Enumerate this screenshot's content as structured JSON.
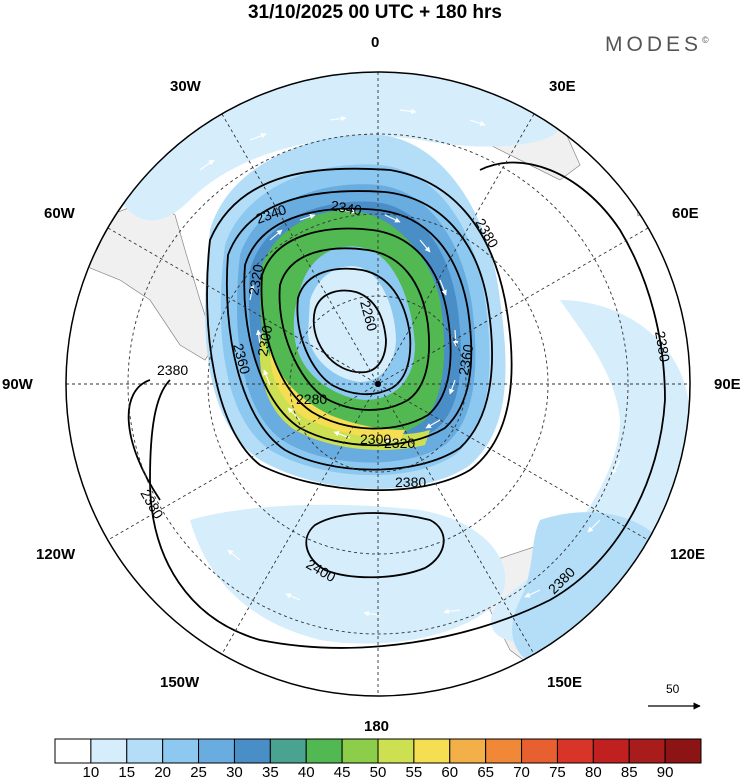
{
  "title": "31/10/2025  00 UTC  + 180 hrs",
  "brand": {
    "name": "MODES",
    "mark": "©"
  },
  "longitude_labels": {
    "lon_0": "0",
    "lon_30e": "30E",
    "lon_60e": "60E",
    "lon_90e": "90E",
    "lon_120e": "120E",
    "lon_150e": "150E",
    "lon_180": "180",
    "lon_150w": "150W",
    "lon_120w": "120W",
    "lon_90w": "90W",
    "lon_60w": "60W",
    "lon_30w": "30W"
  },
  "contour_labels": [
    "2380",
    "2380",
    "2380",
    "2380",
    "2380",
    "2380",
    "2360",
    "2360",
    "2340",
    "2340",
    "2320",
    "2320",
    "2300",
    "2300",
    "2280",
    "2260",
    "2400"
  ],
  "reference_vector": {
    "value": "50"
  },
  "colorbar": {
    "ticks": [
      "10",
      "15",
      "20",
      "25",
      "30",
      "35",
      "40",
      "45",
      "50",
      "55",
      "60",
      "65",
      "70",
      "75",
      "80",
      "85",
      "90"
    ],
    "colors": [
      "#ffffff",
      "#d6eefc",
      "#b4def8",
      "#8cc8f0",
      "#68ace0",
      "#4a8ec8",
      "#4aa290",
      "#52b852",
      "#8ccd4a",
      "#cce052",
      "#f5de52",
      "#f3b048",
      "#f08838",
      "#e86030",
      "#d83428",
      "#c02020",
      "#a81c1c",
      "#8c1414"
    ]
  },
  "colors": {
    "land": "#f0f0f0",
    "contour": "#000000",
    "grid": "#333333"
  }
}
